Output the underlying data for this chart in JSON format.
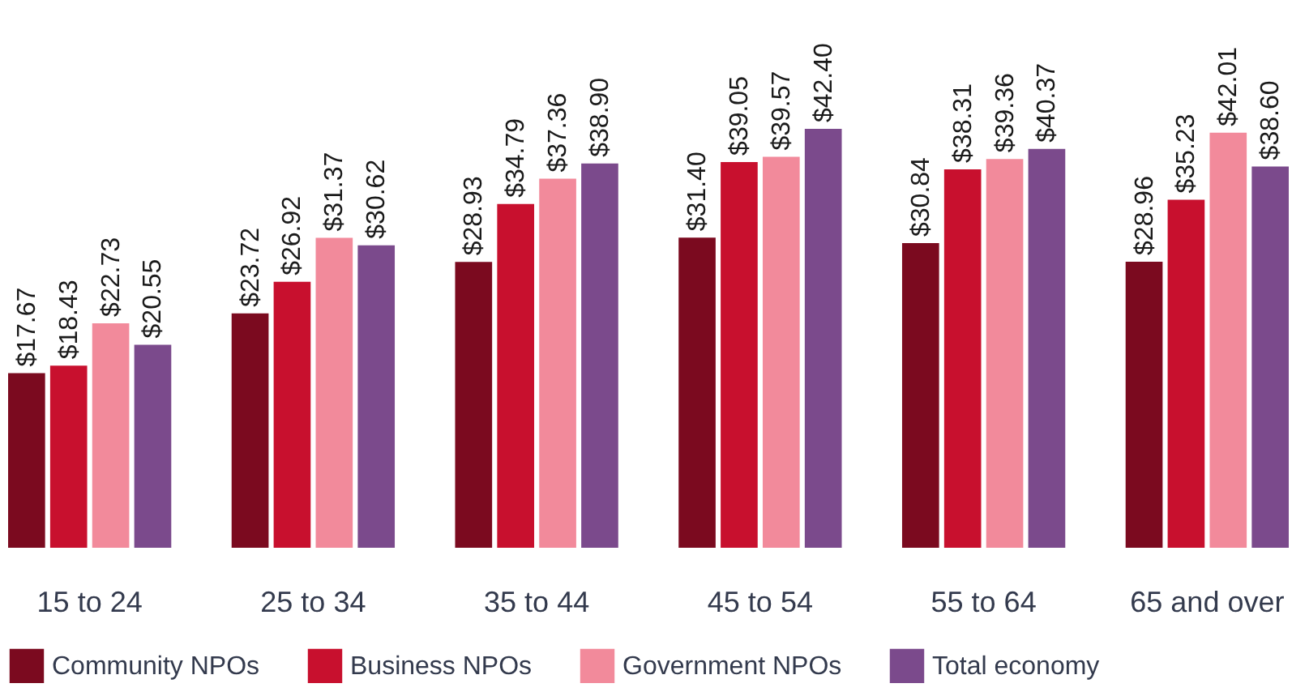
{
  "chart_data": {
    "type": "bar",
    "categories": [
      "15 to 24",
      "25 to 34",
      "35 to 44",
      "45 to 54",
      "55 to 64",
      "65 and over"
    ],
    "series": [
      {
        "name": "Community NPOs",
        "color": "#7b0a1f",
        "values": [
          17.67,
          23.72,
          28.93,
          31.4,
          30.84,
          28.96
        ],
        "value_labels": [
          "$17.67",
          "$23.72",
          "$28.93",
          "$31.40",
          "$30.84",
          "$28.96"
        ]
      },
      {
        "name": "Business NPOs",
        "color": "#c8102e",
        "values": [
          18.43,
          26.92,
          34.79,
          39.05,
          38.31,
          35.23
        ],
        "value_labels": [
          "$18.43",
          "$26.92",
          "$34.79",
          "$39.05",
          "$38.31",
          "$35.23"
        ]
      },
      {
        "name": "Government NPOs",
        "color": "#f28a9b",
        "values": [
          22.73,
          31.37,
          37.36,
          39.57,
          39.36,
          42.01
        ],
        "value_labels": [
          "$22.73",
          "$31.37",
          "$37.36",
          "$39.57",
          "$39.36",
          "$42.01"
        ]
      },
      {
        "name": "Total economy",
        "color": "#7b4a8c",
        "values": [
          20.55,
          30.62,
          38.9,
          42.4,
          40.37,
          38.6
        ],
        "value_labels": [
          "$20.55",
          "$30.62",
          "$38.90",
          "$42.40",
          "$40.37",
          "$38.60"
        ]
      }
    ],
    "legend": "bottom",
    "grid": false
  }
}
